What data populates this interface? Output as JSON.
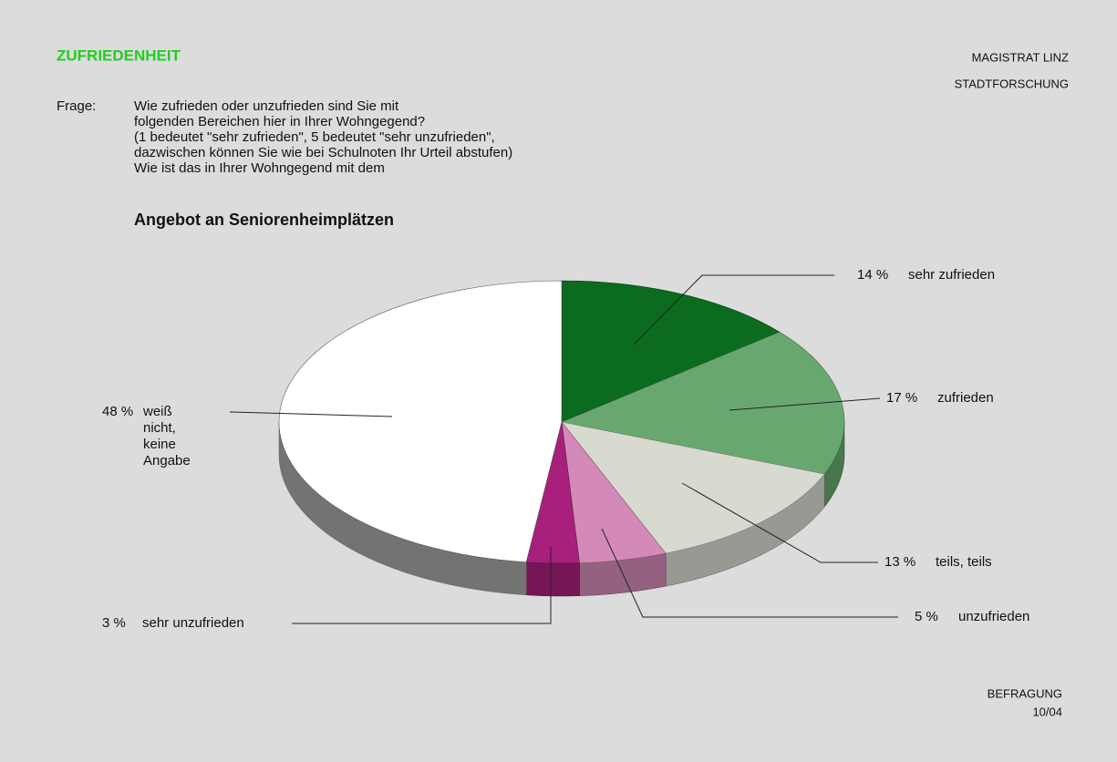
{
  "header": {
    "section": "ZUFRIEDENHEIT",
    "org": [
      "MAGISTRAT  LINZ",
      "STADTFORSCHUNG"
    ]
  },
  "question": {
    "label": "Frage:",
    "lines": [
      "Wie zufrieden oder unzufrieden sind Sie mit",
      "folgenden Bereichen hier in Ihrer Wohngegend?",
      "(1 bedeutet \"sehr zufrieden\", 5 bedeutet \"sehr unzufrieden\",",
      "dazwischen können Sie wie bei Schulnoten Ihr Urteil abstufen)",
      "Wie ist das in Ihrer Wohngegend mit dem"
    ]
  },
  "chart_data": {
    "type": "pie",
    "title": "Angebot an Seniorenheimplätzen",
    "categories": [
      "sehr zufrieden",
      "zufrieden",
      "teils, teils",
      "unzufrieden",
      "sehr unzufrieden",
      "weiß nicht, keine Angabe"
    ],
    "values": [
      14,
      17,
      13,
      5,
      3,
      48
    ],
    "value_labels": [
      "14 %",
      "17 %",
      "13 %",
      "5 %",
      "3 %",
      "48 %"
    ],
    "colors": [
      "#0b6b1e",
      "#68a870",
      "#d8dad0",
      "#d48ab8",
      "#a8207c",
      "#ffffff"
    ]
  },
  "footer": [
    "BEFRAGUNG",
    "10/04"
  ]
}
